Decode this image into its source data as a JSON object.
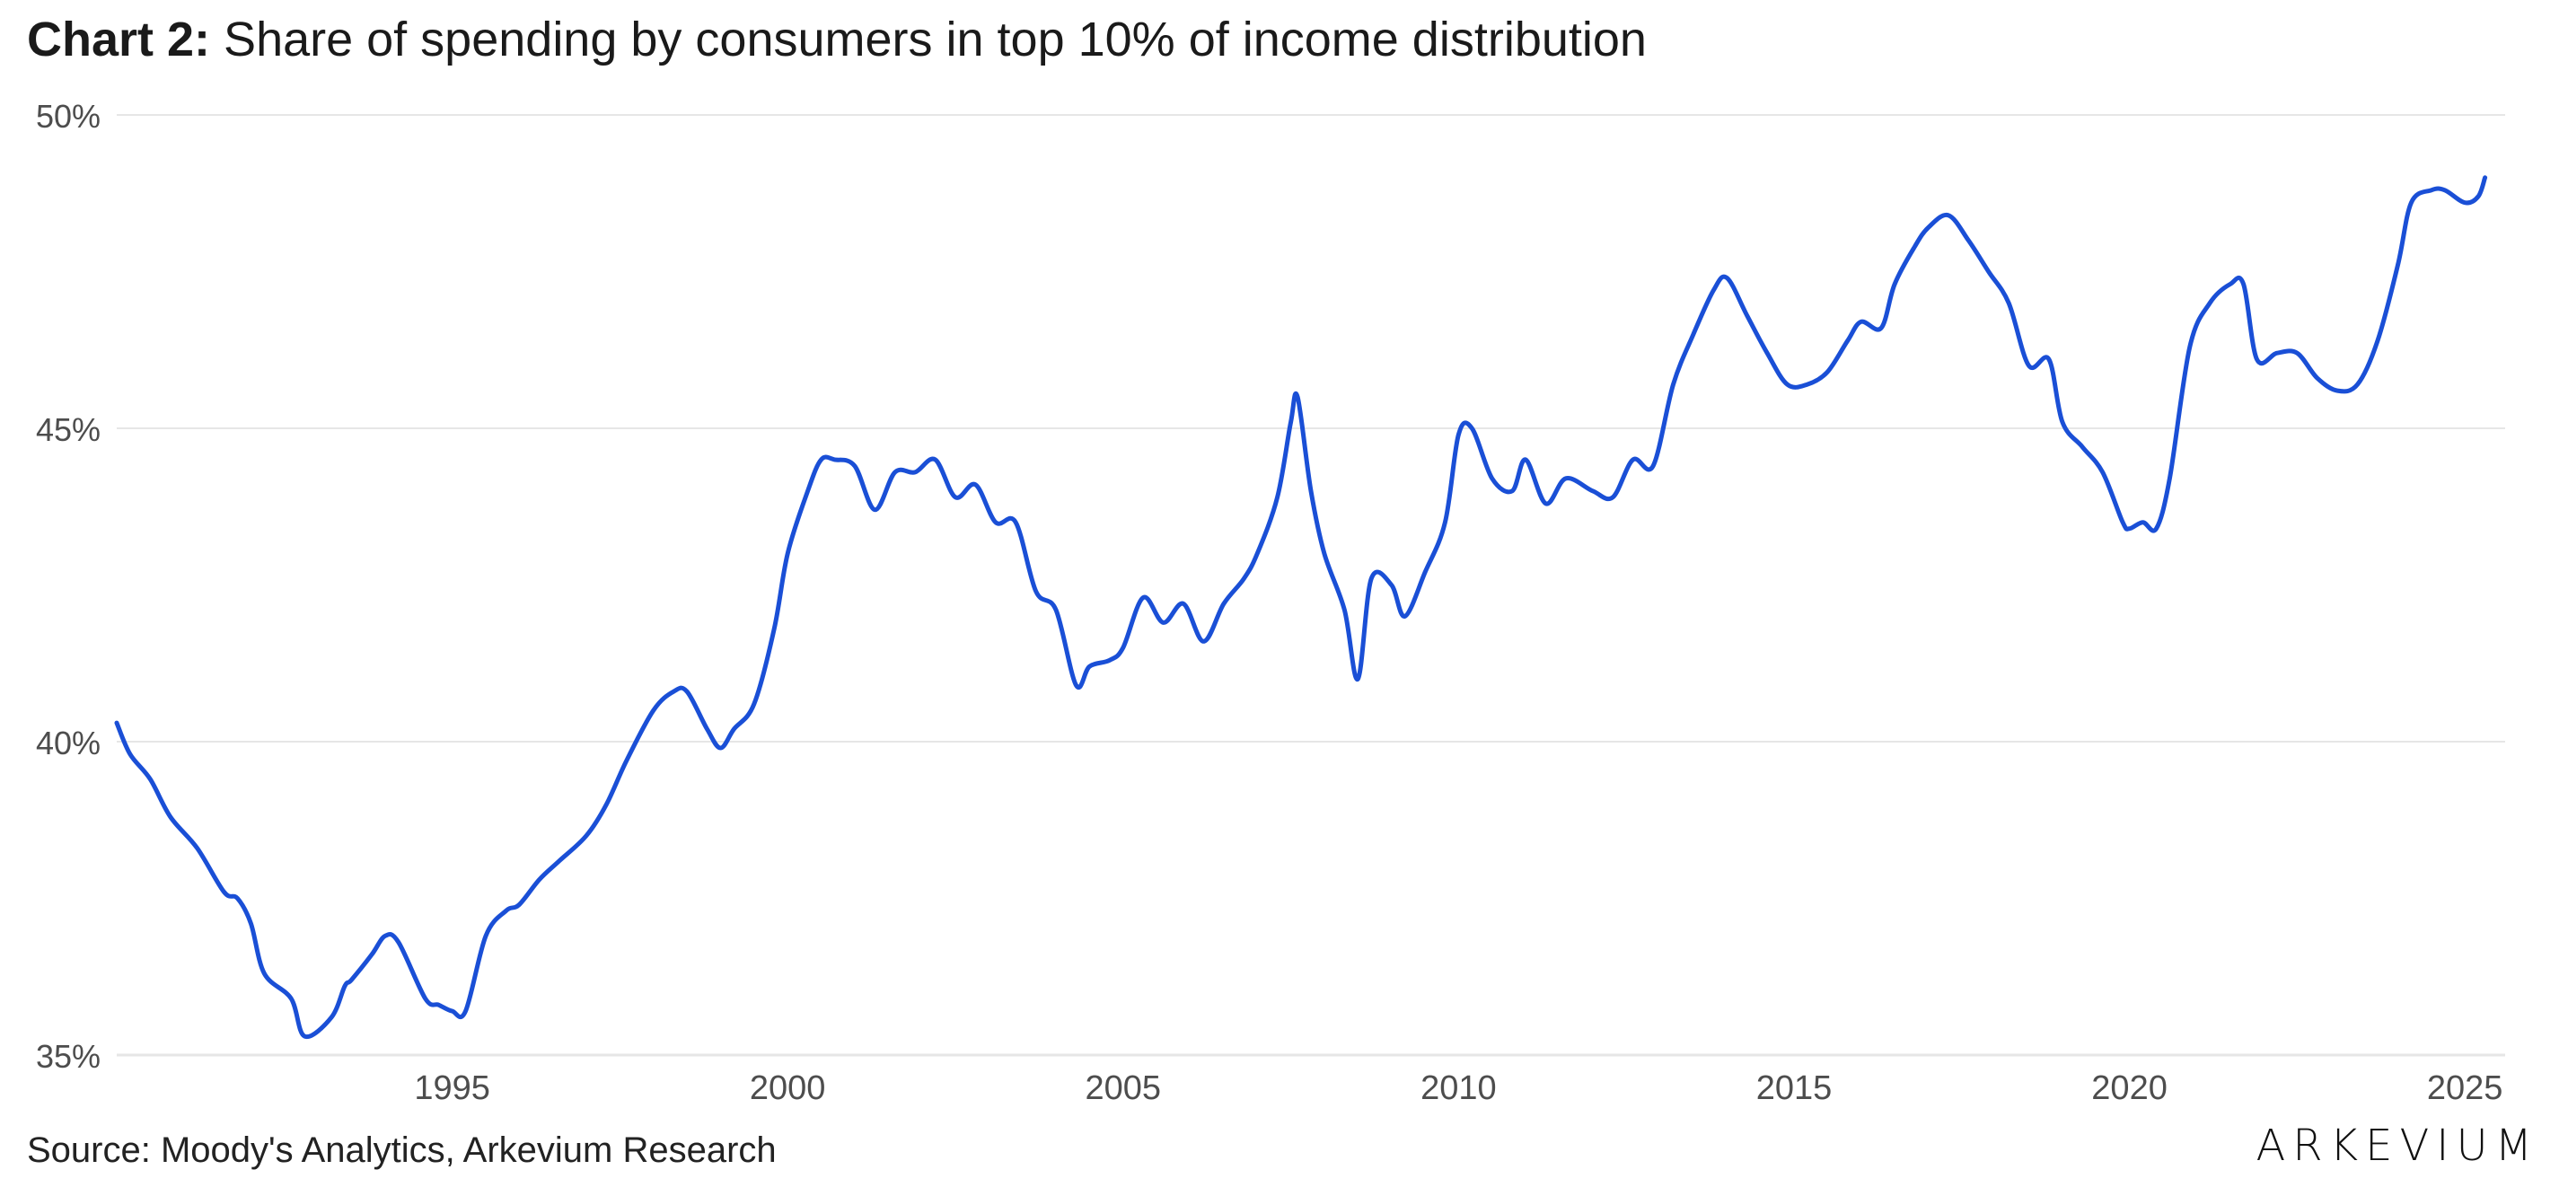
{
  "title": {
    "prefix": "Chart 2:",
    "text": "Share of spending by consumers in top 10% of income distribution"
  },
  "source": "Source: Moody's Analytics, Arkevium Research",
  "logo": "ARKEVIUM",
  "colors": {
    "line": "#1a4fd6",
    "grid": "#e6e6e6",
    "tick_text": "#4d4d4d"
  },
  "chart_data": {
    "type": "line",
    "title": "Share of spending by consumers in top 10% of income distribution",
    "xlabel": "",
    "ylabel": "",
    "xlim": [
      1990.0,
      2025.6
    ],
    "ylim": [
      35,
      50
    ],
    "x_ticks": [
      1995,
      2000,
      2005,
      2010,
      2015,
      2020,
      2025
    ],
    "x_tick_labels": [
      "1995",
      "2000",
      "2005",
      "2010",
      "2015",
      "2020",
      "2025"
    ],
    "y_ticks": [
      35,
      40,
      45,
      50
    ],
    "y_tick_labels": [
      "35%",
      "40%",
      "45%",
      "50%"
    ],
    "grid": "horizontal",
    "legend": "none",
    "series": [
      {
        "x": [
          1990.0,
          1990.2,
          1990.5,
          1990.8,
          1991.2,
          1991.6,
          1991.8,
          1992.0,
          1992.2,
          1992.6,
          1992.8,
          1993.2,
          1993.4,
          1993.5,
          1993.8,
          1994.0,
          1994.2,
          1994.6,
          1994.8,
          1995.0,
          1995.2,
          1995.5,
          1995.8,
          1996.0,
          1996.3,
          1996.6,
          1997.0,
          1997.3,
          1997.6,
          1998.0,
          1998.3,
          1998.5,
          1998.8,
          1999.0,
          1999.2,
          1999.5,
          1999.8,
          2000.0,
          2000.3,
          2000.5,
          2000.7,
          2001.0,
          2001.3,
          2001.6,
          2001.9,
          2002.2,
          2002.5,
          2002.8,
          2003.1,
          2003.4,
          2003.7,
          2004.0,
          2004.3,
          2004.5,
          2004.8,
          2005.0,
          2005.3,
          2005.6,
          2005.9,
          2006.2,
          2006.5,
          2006.8,
          2007.0,
          2007.3,
          2007.5,
          2007.6,
          2007.8,
          2008.0,
          2008.3,
          2008.5,
          2008.7,
          2009.0,
          2009.2,
          2009.5,
          2009.8,
          2010.0,
          2010.2,
          2010.5,
          2010.8,
          2011.0,
          2011.3,
          2011.6,
          2012.0,
          2012.3,
          2012.6,
          2012.9,
          2013.2,
          2013.5,
          2013.8,
          2014.0,
          2014.3,
          2014.6,
          2014.9,
          2015.2,
          2015.5,
          2015.8,
          2016.0,
          2016.3,
          2016.5,
          2016.8,
          2017.0,
          2017.3,
          2017.6,
          2017.9,
          2018.2,
          2018.5,
          2018.8,
          2019.0,
          2019.3,
          2019.6,
          2019.9,
          2020.0,
          2020.2,
          2020.4,
          2020.6,
          2020.9,
          2021.2,
          2021.5,
          2021.7,
          2021.9,
          2022.2,
          2022.5,
          2022.8,
          2023.1,
          2023.4,
          2023.7,
          2024.0,
          2024.2,
          2024.5,
          2024.7,
          2025.0,
          2025.2,
          2025.3
        ],
        "values": [
          40.3,
          39.8,
          39.4,
          38.8,
          38.3,
          37.6,
          37.5,
          37.1,
          36.3,
          35.9,
          35.3,
          35.6,
          36.1,
          36.2,
          36.6,
          36.9,
          36.8,
          35.9,
          35.8,
          35.7,
          35.7,
          36.9,
          37.3,
          37.4,
          37.8,
          38.1,
          38.5,
          39.0,
          39.7,
          40.5,
          40.8,
          40.8,
          40.2,
          39.9,
          40.2,
          40.6,
          41.8,
          43.0,
          44.0,
          44.5,
          44.5,
          44.4,
          43.7,
          44.3,
          44.3,
          44.5,
          43.9,
          44.1,
          43.5,
          43.5,
          42.4,
          42.1,
          40.9,
          41.2,
          41.3,
          41.5,
          42.3,
          41.9,
          42.2,
          41.6,
          42.2,
          42.6,
          43.0,
          43.9,
          45.1,
          45.5,
          44.0,
          43.0,
          42.1,
          41.0,
          42.6,
          42.5,
          42.0,
          42.7,
          43.5,
          44.9,
          45.0,
          44.2,
          44.0,
          44.5,
          43.8,
          44.2,
          44.0,
          43.9,
          44.5,
          44.4,
          45.7,
          46.5,
          47.2,
          47.4,
          46.8,
          46.2,
          45.7,
          45.7,
          45.9,
          46.4,
          46.7,
          46.6,
          47.3,
          47.9,
          48.2,
          48.4,
          48.0,
          47.5,
          47.0,
          46.0,
          46.1,
          45.1,
          44.7,
          44.3,
          43.5,
          43.4,
          43.5,
          43.4,
          44.2,
          46.3,
          47.0,
          47.3,
          47.3,
          46.1,
          46.2,
          46.2,
          45.8,
          45.6,
          45.7,
          46.4,
          47.6,
          48.6,
          48.8,
          48.8,
          48.6,
          48.7,
          49.0
        ]
      }
    ]
  }
}
